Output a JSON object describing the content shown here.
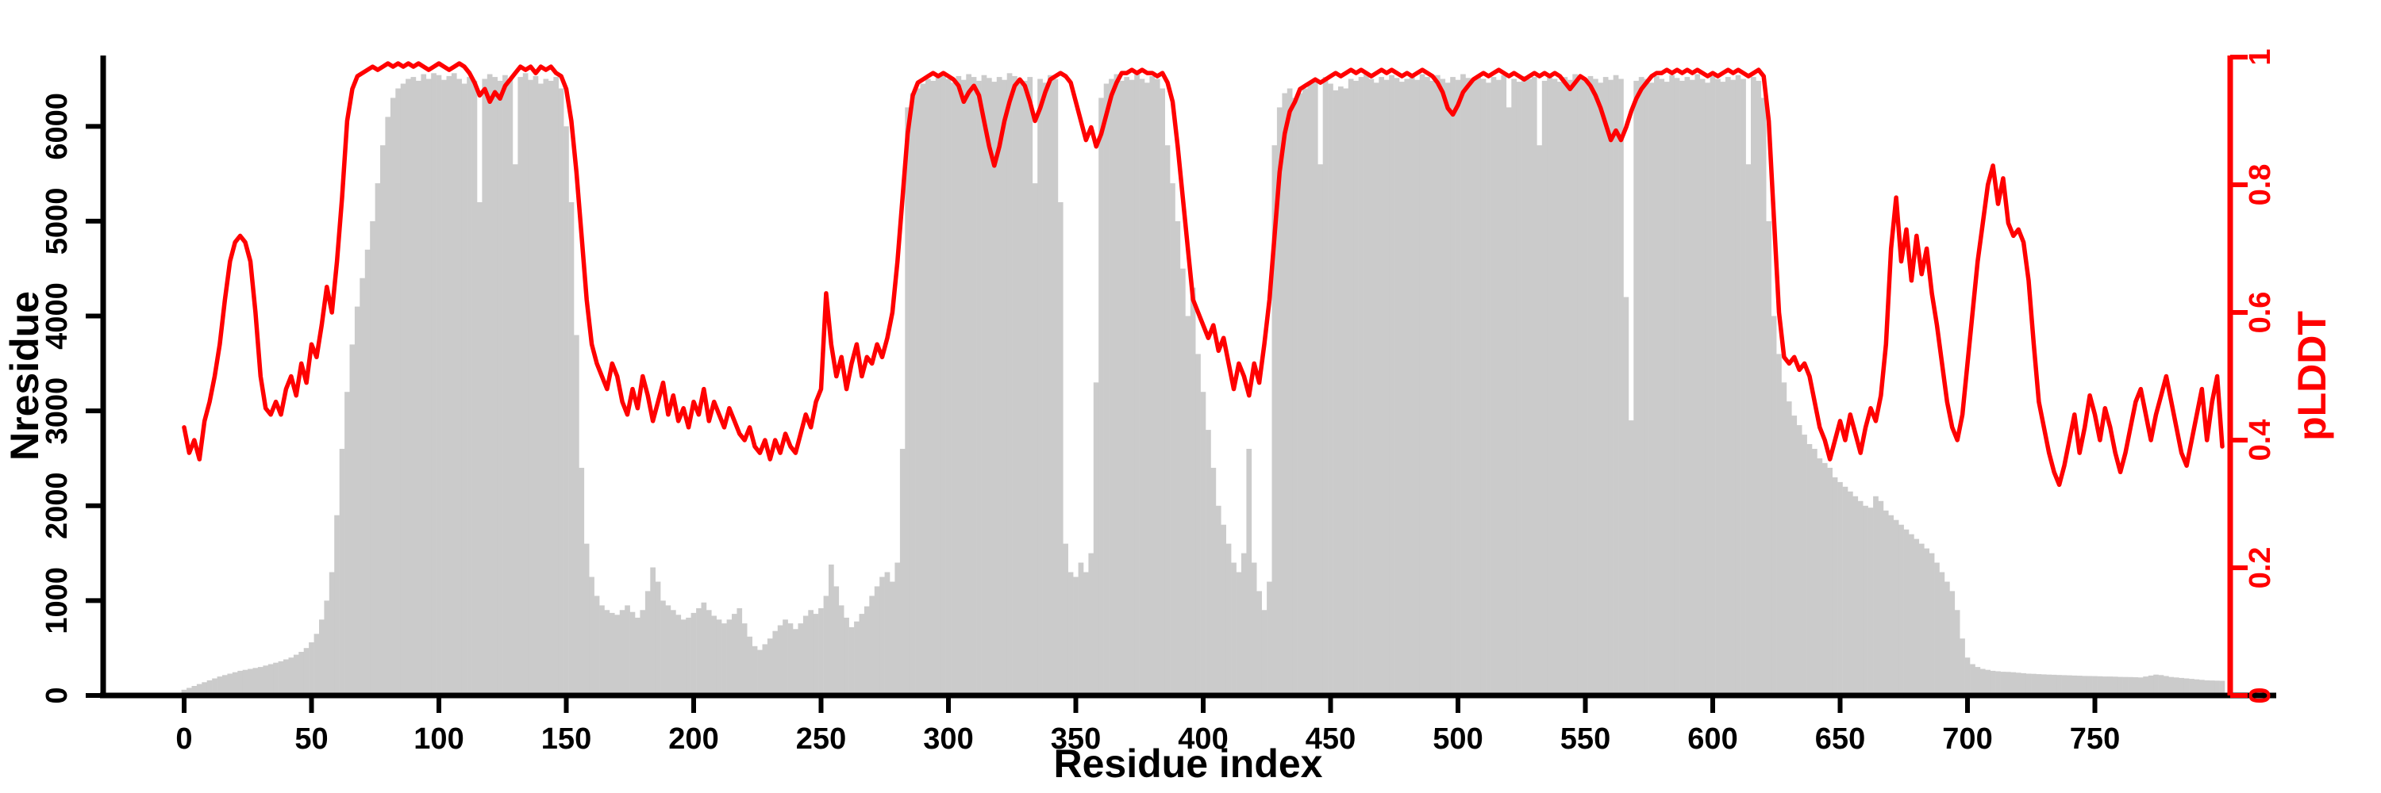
{
  "chart_data": {
    "type": "bar+line",
    "xlabel": "Residue index",
    "ylabel_left": "Nresidue",
    "ylabel_right": "pLDDT",
    "legend": "none",
    "grid": false,
    "x_ticks": [
      0,
      50,
      100,
      150,
      200,
      250,
      300,
      350,
      400,
      450,
      500,
      550,
      600,
      650,
      700,
      750
    ],
    "y_ticks_left": [
      0,
      1000,
      2000,
      3000,
      4000,
      5000,
      6000
    ],
    "y_ticks_right": [
      0,
      0.2,
      0.4,
      0.6,
      0.8,
      1
    ],
    "x_range": [
      0,
      800
    ],
    "y_range_left": [
      0,
      6730
    ],
    "y_range_right": [
      0,
      1
    ],
    "bar_color": "#CBCBCB",
    "line_color": "#FF0000",
    "axis_color": "#000000",
    "x_start": 0,
    "x_step": 2,
    "series": [
      {
        "name": "Nresidue",
        "type": "bar",
        "axis": "left",
        "values": [
          60,
          80,
          100,
          120,
          140,
          160,
          180,
          200,
          215,
          230,
          245,
          260,
          270,
          280,
          290,
          300,
          315,
          330,
          345,
          360,
          380,
          400,
          430,
          460,
          500,
          560,
          650,
          800,
          1000,
          1300,
          1900,
          2600,
          3200,
          3700,
          4100,
          4400,
          4700,
          5000,
          5400,
          5800,
          6100,
          6300,
          6400,
          6450,
          6500,
          6520,
          6480,
          6550,
          6500,
          6560,
          6540,
          6490,
          6530,
          6560,
          6500,
          6450,
          6520,
          6480,
          5200,
          6500,
          6550,
          6520,
          6480,
          6540,
          6500,
          5600,
          6520,
          6560,
          6490,
          6530,
          6450,
          6500,
          6480,
          6520,
          6400,
          6000,
          5200,
          3800,
          2400,
          1600,
          1250,
          1050,
          950,
          900,
          870,
          850,
          900,
          950,
          880,
          820,
          900,
          1100,
          1350,
          1200,
          1000,
          950,
          900,
          850,
          800,
          820,
          870,
          920,
          980,
          900,
          840,
          800,
          760,
          800,
          860,
          920,
          760,
          620,
          520,
          480,
          540,
          600,
          680,
          740,
          800,
          760,
          700,
          760,
          840,
          900,
          860,
          920,
          1050,
          1380,
          1150,
          950,
          820,
          720,
          780,
          860,
          940,
          1050,
          1150,
          1250,
          1300,
          1200,
          1400,
          2600,
          6200,
          6350,
          6400,
          6450,
          6500,
          6480,
          6520,
          6550,
          6500,
          6460,
          6530,
          6490,
          6550,
          6520,
          6480,
          6540,
          6510,
          6470,
          6520,
          6490,
          6560,
          6530,
          6500,
          6480,
          6520,
          5400,
          6500,
          6460,
          6540,
          6500,
          5200,
          1600,
          1300,
          1250,
          1400,
          1300,
          1500,
          3300,
          6300,
          6450,
          6500,
          6550,
          6480,
          6520,
          6490,
          6550,
          6500,
          6460,
          6530,
          6500,
          6400,
          5800,
          5400,
          5000,
          4500,
          4000,
          4300,
          3600,
          3200,
          2800,
          2400,
          2000,
          1800,
          1600,
          1400,
          1300,
          1500,
          2600,
          1400,
          1100,
          900,
          1200,
          5800,
          6200,
          6350,
          6400,
          6300,
          6350,
          6400,
          6450,
          6500,
          5600,
          6520,
          6450,
          6380,
          6420,
          6400,
          6500,
          6480,
          6520,
          6550,
          6500,
          6460,
          6520,
          6490,
          6540,
          6510,
          6470,
          6500,
          6530,
          6490,
          6550,
          6520,
          6480,
          6540,
          6500,
          6460,
          6520,
          6490,
          6550,
          6510,
          6480,
          6530,
          6500,
          6460,
          6520,
          6490,
          6540,
          6200,
          6500,
          6470,
          6530,
          6500,
          6520,
          5800,
          6480,
          6540,
          6500,
          6470,
          6520,
          6490,
          6550,
          6510,
          6480,
          6530,
          6500,
          6460,
          6520,
          6490,
          6540,
          6500,
          4200,
          2900,
          6480,
          6520,
          6500,
          6460,
          6530,
          6500,
          6470,
          6540,
          6510,
          6480,
          6520,
          6490,
          6550,
          6500,
          6460,
          6530,
          6500,
          6470,
          6520,
          6490,
          6540,
          6500,
          5600,
          6520,
          6480,
          6300,
          5000,
          4000,
          3600,
          3300,
          3100,
          2950,
          2850,
          2750,
          2650,
          2600,
          2500,
          2450,
          2400,
          2300,
          2250,
          2200,
          2150,
          2100,
          2050,
          2000,
          1980,
          2100,
          2050,
          1950,
          1900,
          1850,
          1800,
          1750,
          1700,
          1650,
          1600,
          1550,
          1500,
          1400,
          1300,
          1200,
          1100,
          900,
          600,
          400,
          330,
          300,
          280,
          270,
          260,
          255,
          250,
          248,
          245,
          240,
          235,
          230,
          228,
          225,
          222,
          220,
          218,
          216,
          214,
          212,
          210,
          208,
          206,
          205,
          204,
          202,
          200,
          200,
          198,
          196,
          195,
          194,
          192,
          190,
          200,
          210,
          220,
          215,
          205,
          195,
          190,
          185,
          180,
          175,
          170,
          165,
          160,
          158,
          156,
          155
        ]
      },
      {
        "name": "pLDDT",
        "type": "line",
        "axis": "right",
        "values": [
          0.42,
          0.38,
          0.4,
          0.37,
          0.43,
          0.46,
          0.5,
          0.55,
          0.62,
          0.68,
          0.71,
          0.72,
          0.71,
          0.68,
          0.6,
          0.5,
          0.45,
          0.44,
          0.46,
          0.44,
          0.48,
          0.5,
          0.47,
          0.52,
          0.49,
          0.55,
          0.53,
          0.58,
          0.64,
          0.6,
          0.68,
          0.78,
          0.9,
          0.95,
          0.97,
          0.975,
          0.98,
          0.985,
          0.98,
          0.985,
          0.99,
          0.985,
          0.99,
          0.985,
          0.99,
          0.985,
          0.99,
          0.985,
          0.98,
          0.985,
          0.99,
          0.985,
          0.98,
          0.985,
          0.99,
          0.985,
          0.975,
          0.96,
          0.94,
          0.95,
          0.93,
          0.945,
          0.935,
          0.955,
          0.965,
          0.975,
          0.985,
          0.98,
          0.985,
          0.975,
          0.985,
          0.98,
          0.985,
          0.975,
          0.97,
          0.95,
          0.9,
          0.82,
          0.72,
          0.62,
          0.55,
          0.52,
          0.5,
          0.48,
          0.52,
          0.5,
          0.46,
          0.44,
          0.48,
          0.45,
          0.5,
          0.47,
          0.43,
          0.46,
          0.49,
          0.44,
          0.47,
          0.43,
          0.45,
          0.42,
          0.46,
          0.44,
          0.48,
          0.43,
          0.46,
          0.44,
          0.42,
          0.45,
          0.43,
          0.41,
          0.4,
          0.42,
          0.39,
          0.38,
          0.4,
          0.37,
          0.4,
          0.38,
          0.41,
          0.39,
          0.38,
          0.41,
          0.44,
          0.42,
          0.46,
          0.48,
          0.63,
          0.55,
          0.5,
          0.53,
          0.48,
          0.52,
          0.55,
          0.5,
          0.53,
          0.52,
          0.55,
          0.53,
          0.56,
          0.6,
          0.68,
          0.78,
          0.88,
          0.94,
          0.96,
          0.965,
          0.97,
          0.975,
          0.97,
          0.975,
          0.97,
          0.965,
          0.955,
          0.93,
          0.945,
          0.955,
          0.94,
          0.9,
          0.86,
          0.83,
          0.86,
          0.9,
          0.93,
          0.955,
          0.965,
          0.955,
          0.93,
          0.9,
          0.92,
          0.945,
          0.965,
          0.97,
          0.975,
          0.97,
          0.96,
          0.93,
          0.9,
          0.87,
          0.89,
          0.86,
          0.88,
          0.91,
          0.94,
          0.96,
          0.975,
          0.975,
          0.98,
          0.975,
          0.98,
          0.975,
          0.975,
          0.97,
          0.975,
          0.96,
          0.93,
          0.86,
          0.78,
          0.7,
          0.62,
          0.6,
          0.58,
          0.56,
          0.58,
          0.54,
          0.56,
          0.52,
          0.48,
          0.52,
          0.5,
          0.47,
          0.52,
          0.49,
          0.55,
          0.62,
          0.72,
          0.82,
          0.88,
          0.915,
          0.93,
          0.95,
          0.955,
          0.96,
          0.965,
          0.96,
          0.965,
          0.97,
          0.975,
          0.97,
          0.975,
          0.98,
          0.975,
          0.98,
          0.975,
          0.97,
          0.975,
          0.98,
          0.975,
          0.98,
          0.975,
          0.97,
          0.975,
          0.97,
          0.975,
          0.98,
          0.975,
          0.97,
          0.96,
          0.945,
          0.92,
          0.91,
          0.925,
          0.945,
          0.955,
          0.965,
          0.97,
          0.975,
          0.97,
          0.975,
          0.98,
          0.975,
          0.97,
          0.975,
          0.97,
          0.965,
          0.97,
          0.975,
          0.97,
          0.975,
          0.97,
          0.975,
          0.97,
          0.96,
          0.95,
          0.96,
          0.97,
          0.965,
          0.955,
          0.94,
          0.92,
          0.895,
          0.87,
          0.885,
          0.87,
          0.89,
          0.915,
          0.935,
          0.95,
          0.96,
          0.97,
          0.975,
          0.975,
          0.98,
          0.975,
          0.98,
          0.975,
          0.98,
          0.975,
          0.98,
          0.975,
          0.97,
          0.975,
          0.97,
          0.975,
          0.98,
          0.975,
          0.98,
          0.975,
          0.97,
          0.975,
          0.98,
          0.97,
          0.9,
          0.75,
          0.6,
          0.53,
          0.52,
          0.53,
          0.51,
          0.52,
          0.5,
          0.46,
          0.42,
          0.4,
          0.37,
          0.4,
          0.43,
          0.4,
          0.44,
          0.41,
          0.38,
          0.42,
          0.45,
          0.43,
          0.47,
          0.55,
          0.7,
          0.78,
          0.68,
          0.73,
          0.65,
          0.72,
          0.66,
          0.7,
          0.63,
          0.58,
          0.52,
          0.46,
          0.42,
          0.4,
          0.44,
          0.52,
          0.6,
          0.68,
          0.74,
          0.8,
          0.83,
          0.77,
          0.81,
          0.74,
          0.72,
          0.73,
          0.71,
          0.65,
          0.55,
          0.46,
          0.42,
          0.38,
          0.35,
          0.33,
          0.36,
          0.4,
          0.44,
          0.38,
          0.42,
          0.47,
          0.44,
          0.4,
          0.45,
          0.42,
          0.38,
          0.35,
          0.38,
          0.42,
          0.46,
          0.48,
          0.44,
          0.4,
          0.44,
          0.47,
          0.5,
          0.46,
          0.42,
          0.38,
          0.36,
          0.4,
          0.44,
          0.48,
          0.4,
          0.46,
          0.5,
          0.39
        ]
      }
    ]
  }
}
